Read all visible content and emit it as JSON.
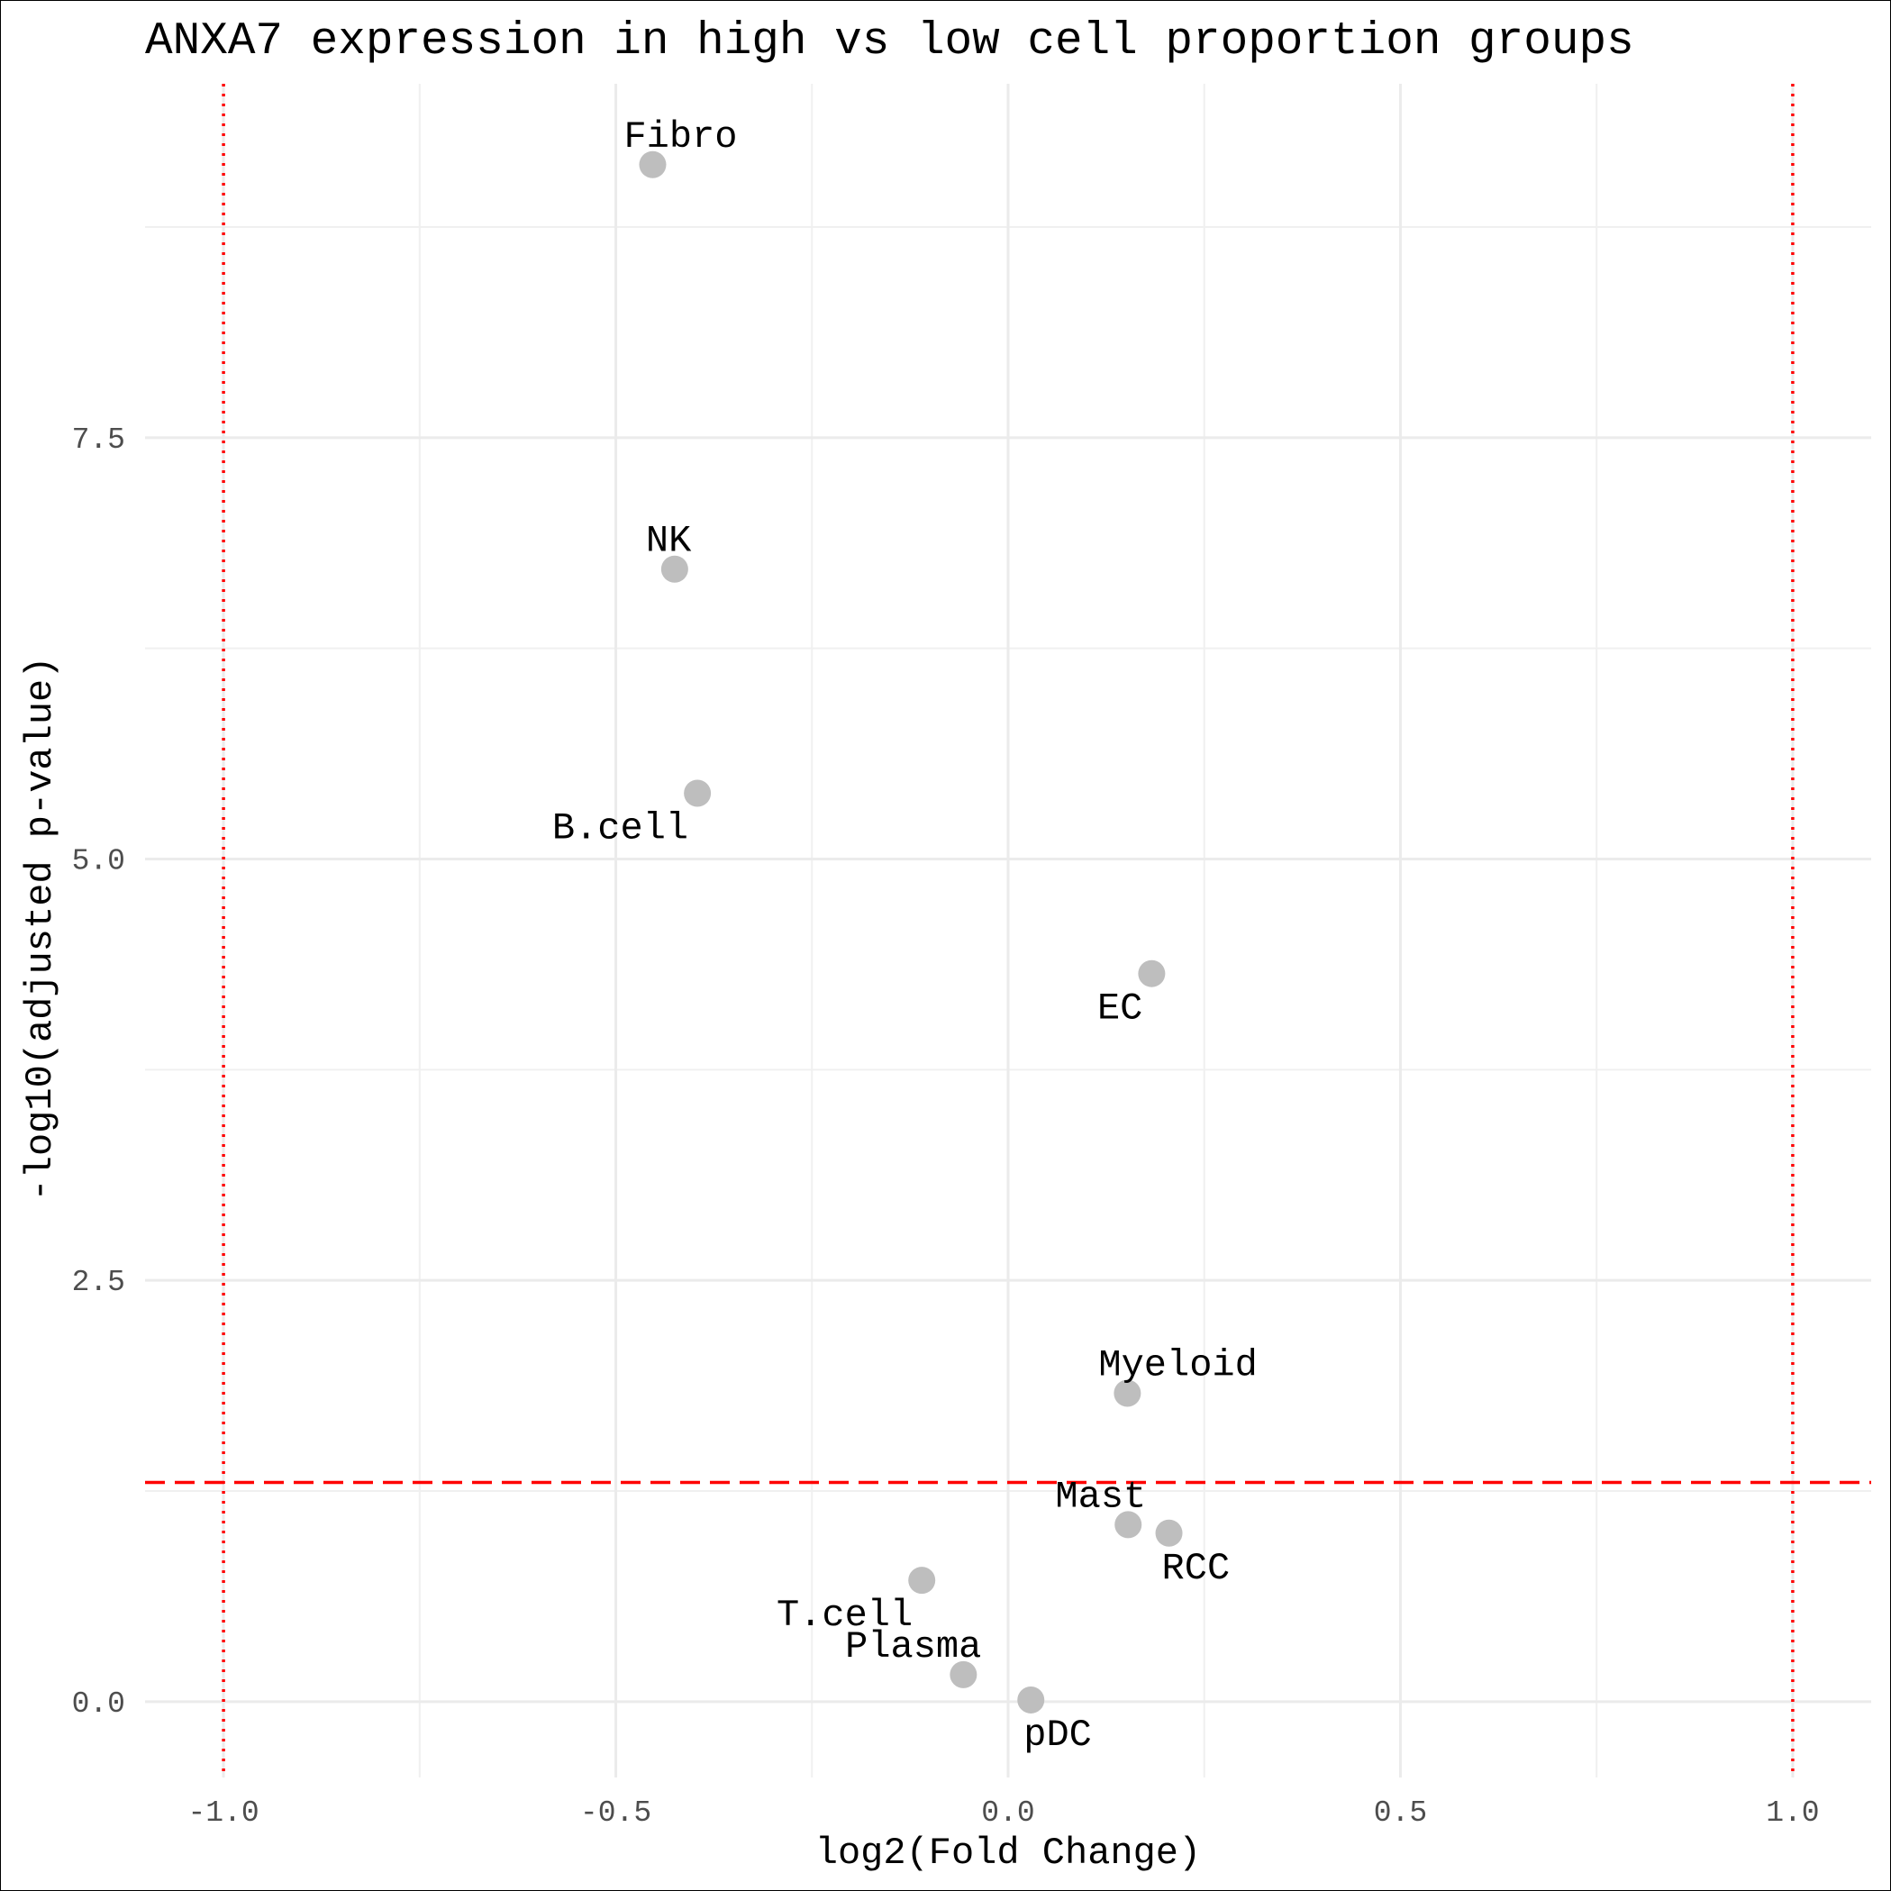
{
  "chart_data": {
    "type": "scatter",
    "title": "ANXA7 expression in high vs low cell proportion groups",
    "xlabel": "log2(Fold Change)",
    "ylabel": "-log10(adjusted p-value)",
    "xlim": [
      -1.1,
      1.1
    ],
    "ylim": [
      -0.45,
      9.6
    ],
    "x_ticks": [
      -1.0,
      -0.5,
      0.0,
      0.5,
      1.0
    ],
    "x_tick_labels": [
      "-1.0",
      "-0.5",
      "0.0",
      "0.5",
      "1.0"
    ],
    "y_ticks": [
      0.0,
      2.5,
      5.0,
      7.5
    ],
    "y_tick_labels": [
      "0.0",
      "2.5",
      "5.0",
      "7.5"
    ],
    "grid": true,
    "point_color": "#bebebe",
    "points": [
      {
        "label": "Fibro",
        "x": -0.453,
        "y": 9.12,
        "label_pos": "above-right"
      },
      {
        "label": "NK",
        "x": -0.425,
        "y": 6.72,
        "label_pos": "above-right"
      },
      {
        "label": "B.cell",
        "x": -0.396,
        "y": 5.39,
        "label_pos": "below-left"
      },
      {
        "label": "EC",
        "x": 0.183,
        "y": 4.32,
        "label_pos": "below-left"
      },
      {
        "label": "Myeloid",
        "x": 0.152,
        "y": 1.83,
        "label_pos": "above-right"
      },
      {
        "label": "Mast",
        "x": 0.153,
        "y": 1.05,
        "label_pos": "above-left"
      },
      {
        "label": "RCC",
        "x": 0.205,
        "y": 1.0,
        "label_pos": "below-right"
      },
      {
        "label": "T.cell",
        "x": -0.11,
        "y": 0.72,
        "label_pos": "below-left"
      },
      {
        "label": "Plasma",
        "x": -0.057,
        "y": 0.16,
        "label_pos": "above-left"
      },
      {
        "label": "pDC",
        "x": 0.029,
        "y": 0.01,
        "label_pos": "below-right"
      }
    ],
    "reference_lines": {
      "vertical": [
        -1.0,
        1.0
      ],
      "vertical_style": "dotted",
      "horizontal": [
        1.301
      ],
      "horizontal_style": "dashed",
      "color": "#ff0000"
    }
  }
}
